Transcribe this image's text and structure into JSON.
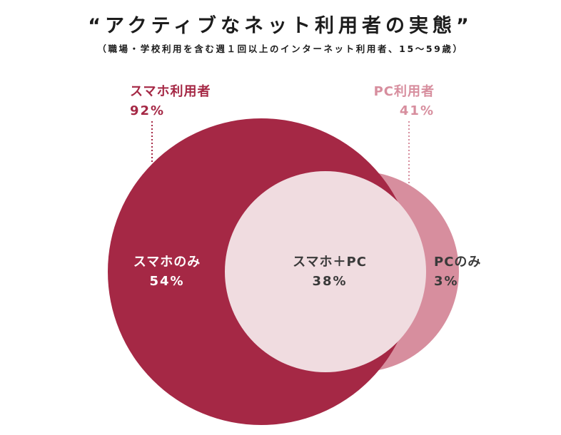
{
  "title": "“アクティブなネット利用者の実態”",
  "subtitle": "（職場・学校利用を含む週１回以上のインターネット利用者、15〜59歳）",
  "colors": {
    "smartphone": "#a52845",
    "pc": "#d78e9e",
    "overlap": "#f0dce0",
    "text_dark": "#3a3a3a",
    "text_white": "#ffffff"
  },
  "chart_data": {
    "type": "venn",
    "title": "“アクティブなネット利用者の実態”",
    "subtitle": "（職場・学校利用を含む週１回以上のインターネット利用者、15〜59歳）",
    "sets": [
      {
        "name": "スマホ利用者",
        "value": 92,
        "label": "92%"
      },
      {
        "name": "PC利用者",
        "value": 41,
        "label": "41%"
      }
    ],
    "regions": [
      {
        "name": "スマホのみ",
        "value": 54,
        "label": "54%"
      },
      {
        "name": "スマホ＋PC",
        "value": 38,
        "label": "38%"
      },
      {
        "name": "PCのみ",
        "value": 3,
        "label": "3%"
      }
    ]
  }
}
